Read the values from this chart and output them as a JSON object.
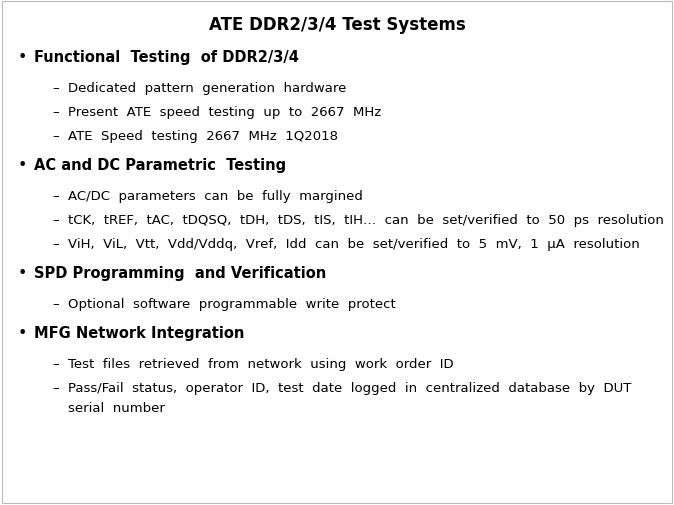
{
  "title": "ATE DDR2/3/4 Test Systems",
  "background_color": "#ffffff",
  "border_color": "#cccccc",
  "title_fontsize": 12,
  "bullet_fontsize": 10.5,
  "sub_fontsize": 9.5,
  "content": [
    {
      "text": "Functional  Testing  of DDR2/3/4",
      "subs": [
        "Dedicated  pattern  generation  hardware",
        "Present  ATE  speed  testing  up  to  2667  MHz",
        "ATE  Speed  testing  2667  MHz  1Q2018"
      ]
    },
    {
      "text": "AC and DC Parametric  Testing",
      "subs": [
        "AC/DC  parameters  can  be  fully  margined",
        "tCK,  tREF,  tAC,  tDQSQ,  tDH,  tDS,  tIS,  tIH…  can  be  set/verified  to  50  ps  resolution",
        "ViH,  ViL,  Vtt,  Vdd/Vddq,  Vref,  Idd  can  be  set/verified  to  5  mV,  1  μA  resolution"
      ]
    },
    {
      "text": "SPD Programming  and Verification",
      "subs": [
        "Optional  software  programmable  write  protect"
      ]
    },
    {
      "text": "MFG Network Integration",
      "subs": [
        "Test  files  retrieved  from  network  using  work  order  ID",
        "Pass/Fail  status,  operator  ID,  test  date  logged  in  centralized  database  by  DUT\nserial  number"
      ]
    }
  ]
}
